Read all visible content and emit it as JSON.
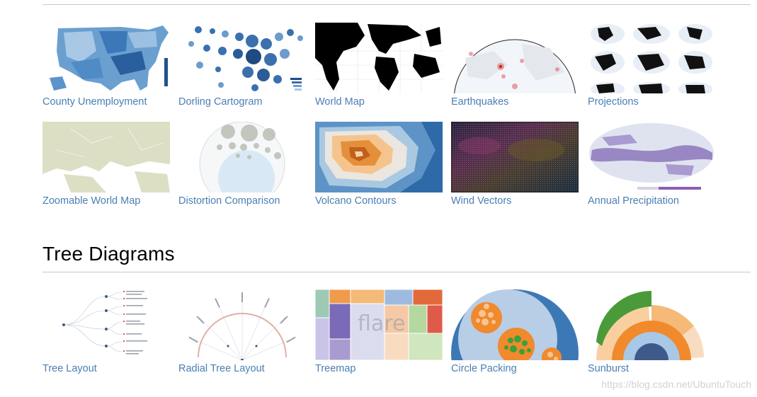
{
  "gallery": {
    "row1": [
      {
        "label": "County Unemployment",
        "preview": "choropleth-us-map"
      },
      {
        "label": "Dorling Cartogram",
        "preview": "bubble-cartogram"
      },
      {
        "label": "World Map",
        "preview": "black-world-map"
      },
      {
        "label": "Earthquakes",
        "preview": "globe-with-points"
      },
      {
        "label": "Projections",
        "preview": "projection-grid"
      }
    ],
    "row2": [
      {
        "label": "Zoomable World Map",
        "preview": "beige-map"
      },
      {
        "label": "Distortion Comparison",
        "preview": "tissot-circles"
      },
      {
        "label": "Volcano Contours",
        "preview": "contour-heatmap"
      },
      {
        "label": "Wind Vectors",
        "preview": "vector-field"
      },
      {
        "label": "Annual Precipitation",
        "preview": "precipitation-map"
      }
    ]
  },
  "tree_section": {
    "title": "Tree Diagrams",
    "items": [
      {
        "label": "Tree Layout",
        "preview": "tree-layout"
      },
      {
        "label": "Radial Tree Layout",
        "preview": "radial-tree"
      },
      {
        "label": "Treemap",
        "preview": "treemap"
      },
      {
        "label": "Circle Packing",
        "preview": "circle-packing"
      },
      {
        "label": "Sunburst",
        "preview": "sunburst"
      }
    ]
  },
  "colors": {
    "link": "#4a7fb3",
    "rule": "#c8c8c8",
    "blue_dark": "#2c68a6",
    "blue_light": "#c7dcef",
    "orange": "#f08a2c"
  },
  "watermark": "https://blog.csdn.net/UbuntuTouch"
}
